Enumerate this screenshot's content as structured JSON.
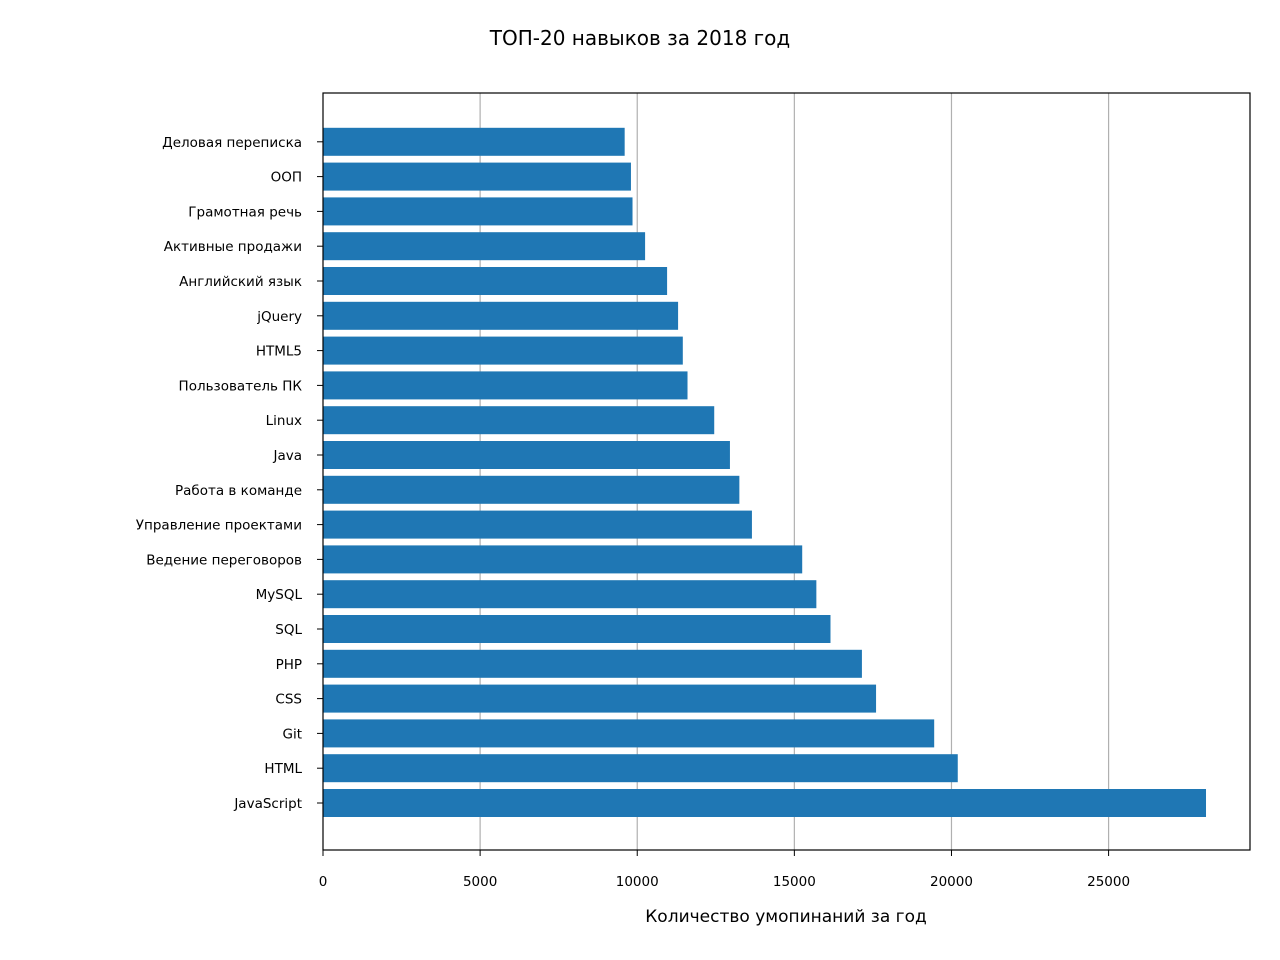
{
  "chart_data": {
    "type": "bar",
    "orientation": "horizontal",
    "title": "ТОП-20 навыков за 2018 год",
    "xlabel": "Количество умопинаний за год",
    "ylabel": "",
    "xlim": [
      0,
      29500
    ],
    "xticks": [
      0,
      5000,
      10000,
      15000,
      20000,
      25000
    ],
    "grid": "vertical",
    "color": "#1f77b4",
    "categories": [
      "JavaScript",
      "HTML",
      "Git",
      "CSS",
      "PHP",
      "SQL",
      "MySQL",
      "Ведение переговоров",
      "Управление проектами",
      "Работа в команде",
      "Java",
      "Linux",
      "Пользователь ПК",
      "HTML5",
      "jQuery",
      "Английский язык",
      "Активные продажи",
      "Грамотная речь",
      "ООП",
      "Деловая переписка"
    ],
    "values": [
      28100,
      20200,
      19450,
      17600,
      17150,
      16150,
      15700,
      15250,
      13650,
      13250,
      12950,
      12450,
      11600,
      11450,
      11300,
      10950,
      10250,
      9850,
      9800,
      9600
    ]
  }
}
